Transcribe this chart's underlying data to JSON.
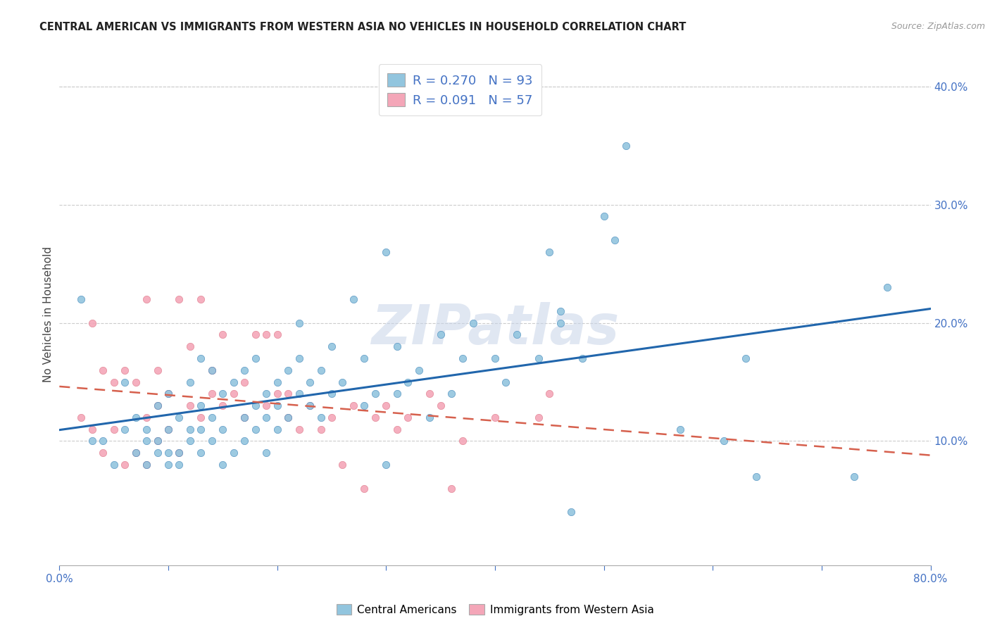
{
  "title": "CENTRAL AMERICAN VS IMMIGRANTS FROM WESTERN ASIA NO VEHICLES IN HOUSEHOLD CORRELATION CHART",
  "source": "Source: ZipAtlas.com",
  "ylabel": "No Vehicles in Household",
  "xlim": [
    0.0,
    0.8
  ],
  "ylim": [
    -0.005,
    0.42
  ],
  "x_ticks": [
    0.0,
    0.1,
    0.2,
    0.3,
    0.4,
    0.5,
    0.6,
    0.7,
    0.8
  ],
  "y_ticks_right": [
    0.1,
    0.2,
    0.3,
    0.4
  ],
  "blue_color": "#92c5de",
  "pink_color": "#f4a6b8",
  "blue_line_color": "#2166ac",
  "pink_line_color": "#d6604d",
  "R_blue": 0.27,
  "N_blue": 93,
  "R_pink": 0.091,
  "N_pink": 57,
  "legend_label_blue": "Central Americans",
  "legend_label_pink": "Immigrants from Western Asia",
  "watermark": "ZIPatlas",
  "blue_scatter_x": [
    0.02,
    0.03,
    0.04,
    0.05,
    0.06,
    0.06,
    0.07,
    0.07,
    0.08,
    0.08,
    0.08,
    0.09,
    0.09,
    0.09,
    0.1,
    0.1,
    0.1,
    0.1,
    0.11,
    0.11,
    0.11,
    0.12,
    0.12,
    0.12,
    0.13,
    0.13,
    0.13,
    0.13,
    0.14,
    0.14,
    0.14,
    0.15,
    0.15,
    0.15,
    0.16,
    0.16,
    0.17,
    0.17,
    0.17,
    0.18,
    0.18,
    0.18,
    0.19,
    0.19,
    0.19,
    0.2,
    0.2,
    0.2,
    0.21,
    0.21,
    0.22,
    0.22,
    0.22,
    0.23,
    0.23,
    0.24,
    0.24,
    0.25,
    0.25,
    0.26,
    0.27,
    0.28,
    0.28,
    0.29,
    0.3,
    0.3,
    0.31,
    0.31,
    0.32,
    0.33,
    0.34,
    0.35,
    0.36,
    0.37,
    0.38,
    0.4,
    0.41,
    0.42,
    0.44,
    0.45,
    0.46,
    0.46,
    0.47,
    0.48,
    0.5,
    0.51,
    0.52,
    0.57,
    0.61,
    0.63,
    0.64,
    0.73,
    0.76
  ],
  "blue_scatter_y": [
    0.22,
    0.1,
    0.1,
    0.08,
    0.11,
    0.15,
    0.09,
    0.12,
    0.08,
    0.1,
    0.11,
    0.09,
    0.1,
    0.13,
    0.08,
    0.09,
    0.11,
    0.14,
    0.08,
    0.09,
    0.12,
    0.1,
    0.11,
    0.15,
    0.09,
    0.11,
    0.13,
    0.17,
    0.1,
    0.12,
    0.16,
    0.08,
    0.11,
    0.14,
    0.09,
    0.15,
    0.1,
    0.12,
    0.16,
    0.11,
    0.13,
    0.17,
    0.09,
    0.12,
    0.14,
    0.11,
    0.13,
    0.15,
    0.12,
    0.16,
    0.14,
    0.17,
    0.2,
    0.13,
    0.15,
    0.12,
    0.16,
    0.14,
    0.18,
    0.15,
    0.22,
    0.13,
    0.17,
    0.14,
    0.26,
    0.08,
    0.14,
    0.18,
    0.15,
    0.16,
    0.12,
    0.19,
    0.14,
    0.17,
    0.2,
    0.17,
    0.15,
    0.19,
    0.17,
    0.26,
    0.2,
    0.21,
    0.04,
    0.17,
    0.29,
    0.27,
    0.35,
    0.11,
    0.1,
    0.17,
    0.07,
    0.07,
    0.23
  ],
  "pink_scatter_x": [
    0.02,
    0.03,
    0.03,
    0.04,
    0.04,
    0.05,
    0.05,
    0.06,
    0.06,
    0.07,
    0.07,
    0.08,
    0.08,
    0.08,
    0.09,
    0.09,
    0.09,
    0.1,
    0.1,
    0.11,
    0.11,
    0.12,
    0.12,
    0.13,
    0.13,
    0.14,
    0.14,
    0.15,
    0.15,
    0.16,
    0.17,
    0.17,
    0.18,
    0.19,
    0.19,
    0.2,
    0.2,
    0.21,
    0.21,
    0.22,
    0.23,
    0.24,
    0.25,
    0.26,
    0.27,
    0.28,
    0.29,
    0.3,
    0.31,
    0.32,
    0.34,
    0.35,
    0.36,
    0.37,
    0.4,
    0.44,
    0.45
  ],
  "pink_scatter_y": [
    0.12,
    0.11,
    0.2,
    0.09,
    0.16,
    0.11,
    0.15,
    0.08,
    0.16,
    0.09,
    0.15,
    0.08,
    0.12,
    0.22,
    0.1,
    0.13,
    0.16,
    0.11,
    0.14,
    0.09,
    0.22,
    0.13,
    0.18,
    0.12,
    0.22,
    0.14,
    0.16,
    0.13,
    0.19,
    0.14,
    0.12,
    0.15,
    0.19,
    0.13,
    0.19,
    0.14,
    0.19,
    0.12,
    0.14,
    0.11,
    0.13,
    0.11,
    0.12,
    0.08,
    0.13,
    0.06,
    0.12,
    0.13,
    0.11,
    0.12,
    0.14,
    0.13,
    0.06,
    0.1,
    0.12,
    0.12,
    0.14
  ]
}
